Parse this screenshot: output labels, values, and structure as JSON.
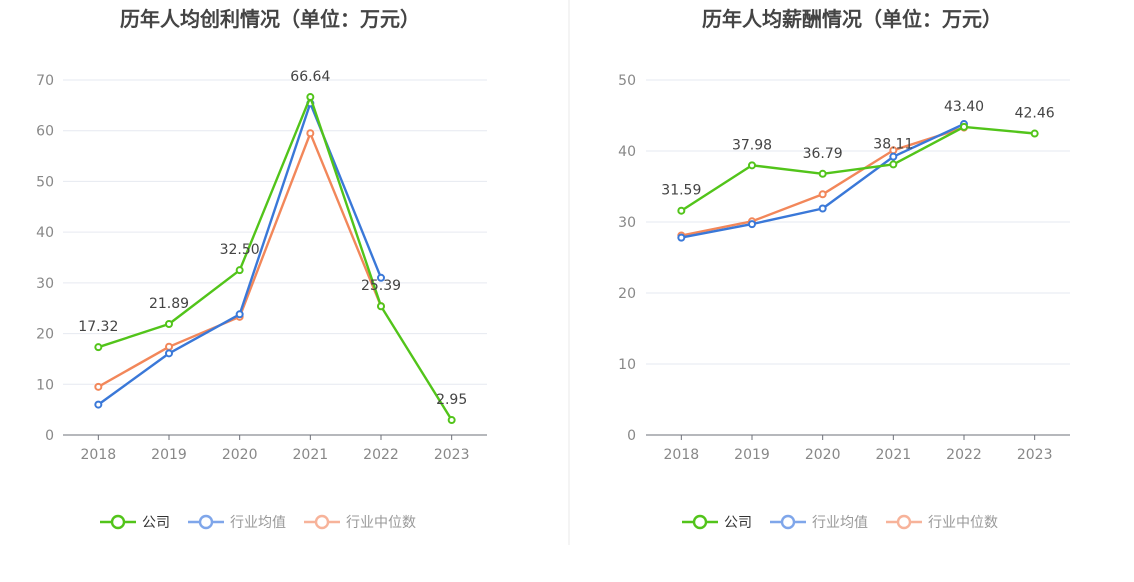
{
  "chart_data": [
    {
      "type": "line",
      "title": "历年人均创利情况（单位：万元）",
      "categories": [
        "2018",
        "2019",
        "2020",
        "2021",
        "2022",
        "2023"
      ],
      "ylim": [
        0,
        70
      ],
      "yticks": [
        0,
        10,
        20,
        30,
        40,
        50,
        60,
        70
      ],
      "grid": true,
      "legend_position": "bottom",
      "series": [
        {
          "name": "公司",
          "color": "#52c41a",
          "values": [
            17.32,
            21.89,
            32.5,
            66.64,
            25.39,
            2.95
          ],
          "labels": [
            "17.32",
            "21.89",
            "32.50",
            "66.64",
            "25.39",
            "2.95"
          ]
        },
        {
          "name": "行业均值",
          "color": "#3a78d8",
          "values": [
            6.0,
            16.1,
            23.8,
            65.4,
            31.0,
            null
          ]
        },
        {
          "name": "行业中位数",
          "color": "#f2875a",
          "values": [
            9.5,
            17.4,
            23.3,
            59.5,
            25.4,
            null
          ]
        }
      ]
    },
    {
      "type": "line",
      "title": "历年人均薪酬情况（单位：万元）",
      "categories": [
        "2018",
        "2019",
        "2020",
        "2021",
        "2022",
        "2023"
      ],
      "ylim": [
        0,
        50
      ],
      "yticks": [
        0,
        10,
        20,
        30,
        40,
        50
      ],
      "grid": true,
      "legend_position": "bottom",
      "series": [
        {
          "name": "公司",
          "color": "#52c41a",
          "values": [
            31.59,
            37.98,
            36.79,
            38.11,
            43.4,
            42.46
          ],
          "labels": [
            "31.59",
            "37.98",
            "36.79",
            "38.11",
            "43.40",
            "42.46"
          ]
        },
        {
          "name": "行业均值",
          "color": "#3a78d8",
          "values": [
            27.8,
            29.7,
            31.9,
            39.2,
            43.8,
            null
          ]
        },
        {
          "name": "行业中位数",
          "color": "#f2875a",
          "values": [
            28.1,
            30.1,
            33.9,
            40.1,
            43.3,
            null
          ]
        }
      ]
    }
  ],
  "legend_colors": {
    "公司": "#52c41a",
    "行业均值": "#7fa6ea",
    "行业中位数": "#f7b39a"
  }
}
